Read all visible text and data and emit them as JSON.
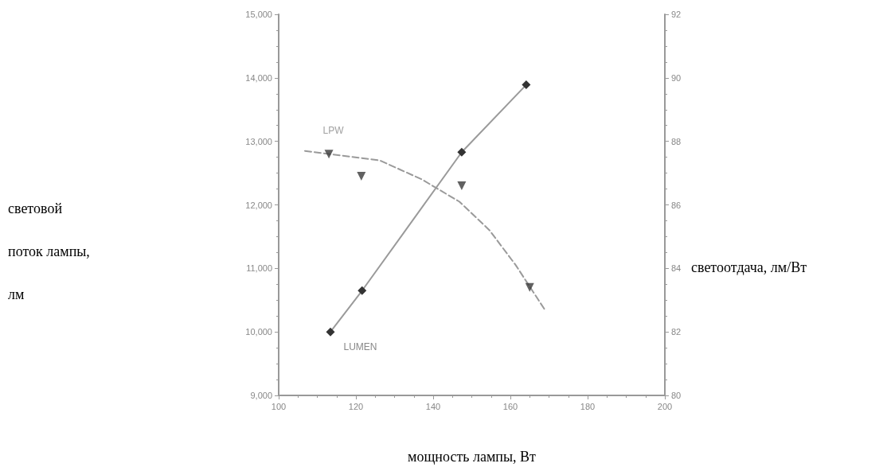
{
  "chart_data": {
    "type": "line",
    "xlabel": "мощность лампы, Вт",
    "ylabel": "световой поток лампы, лм",
    "y2label": "светоотдача, лм/Вт",
    "xlim": [
      100,
      200
    ],
    "xticks": [
      100,
      120,
      140,
      160,
      180,
      200
    ],
    "ylim": [
      9000,
      15000
    ],
    "yticks": [
      {
        "value": 9000,
        "label": "9,000"
      },
      {
        "value": 10000,
        "label": "10,000"
      },
      {
        "value": 11000,
        "label": "11,000"
      },
      {
        "value": 12000,
        "label": "12,000"
      },
      {
        "value": 13000,
        "label": "13,000"
      },
      {
        "value": 14000,
        "label": "14,000"
      },
      {
        "value": 15000,
        "label": "15,000"
      }
    ],
    "y2lim": [
      80,
      92
    ],
    "y2ticks": [
      80,
      82,
      84,
      86,
      88,
      90,
      92
    ],
    "grid": false,
    "legend": false,
    "series": [
      {
        "name": "LUMEN",
        "color": "#9a9a9a",
        "marker": "diamond",
        "line_style": "solid",
        "x": [
          113.4,
          121.6,
          147.4,
          164.1
        ],
        "values": [
          10000,
          10650,
          12830,
          13890
        ]
      },
      {
        "name": "LPW",
        "type": "scatter",
        "axis": "y2",
        "color": "#3a3a3a",
        "marker": "triangle",
        "x": [
          113,
          121.4,
          147.4,
          165
        ],
        "values": [
          87.6,
          86.9,
          86.6,
          83.4
        ]
      },
      {
        "type": "line",
        "axis": "y2",
        "color": "#9a9a9a",
        "marker": "none",
        "line_style": "dashed",
        "x": [
          106.8,
          126.2,
          137.1,
          146.8,
          154.6,
          161.4,
          168.9
        ],
        "values": [
          87.7,
          87.4,
          86.8,
          86.1,
          85.2,
          84.1,
          82.7
        ]
      }
    ]
  }
}
